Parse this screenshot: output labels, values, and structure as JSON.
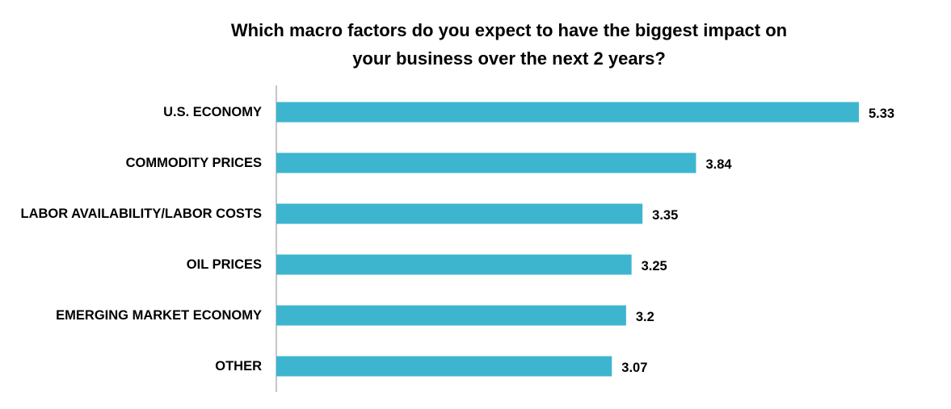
{
  "chart_data": {
    "type": "bar",
    "orientation": "horizontal",
    "title": "Which macro factors do you expect to have the biggest impact on your business over the next 2 years?",
    "title_lines": [
      "Which macro factors do you expect to have the biggest impact on",
      "your business over the next 2 years?"
    ],
    "categories": [
      "U.S. ECONOMY",
      "COMMODITY PRICES",
      "LABOR AVAILABILITY/LABOR COSTS",
      "OIL PRICES",
      "EMERGING MARKET ECONOMY",
      "OTHER"
    ],
    "values": [
      5.33,
      3.84,
      3.35,
      3.25,
      3.2,
      3.07
    ],
    "value_labels": [
      "5.33",
      "3.84",
      "3.35",
      "3.25",
      "3.2",
      "3.07"
    ],
    "xlim": [
      0,
      6
    ],
    "grid": false,
    "legend": "none",
    "bar_color": "#3DB5CF",
    "axis_color": "#8C8C8C"
  }
}
